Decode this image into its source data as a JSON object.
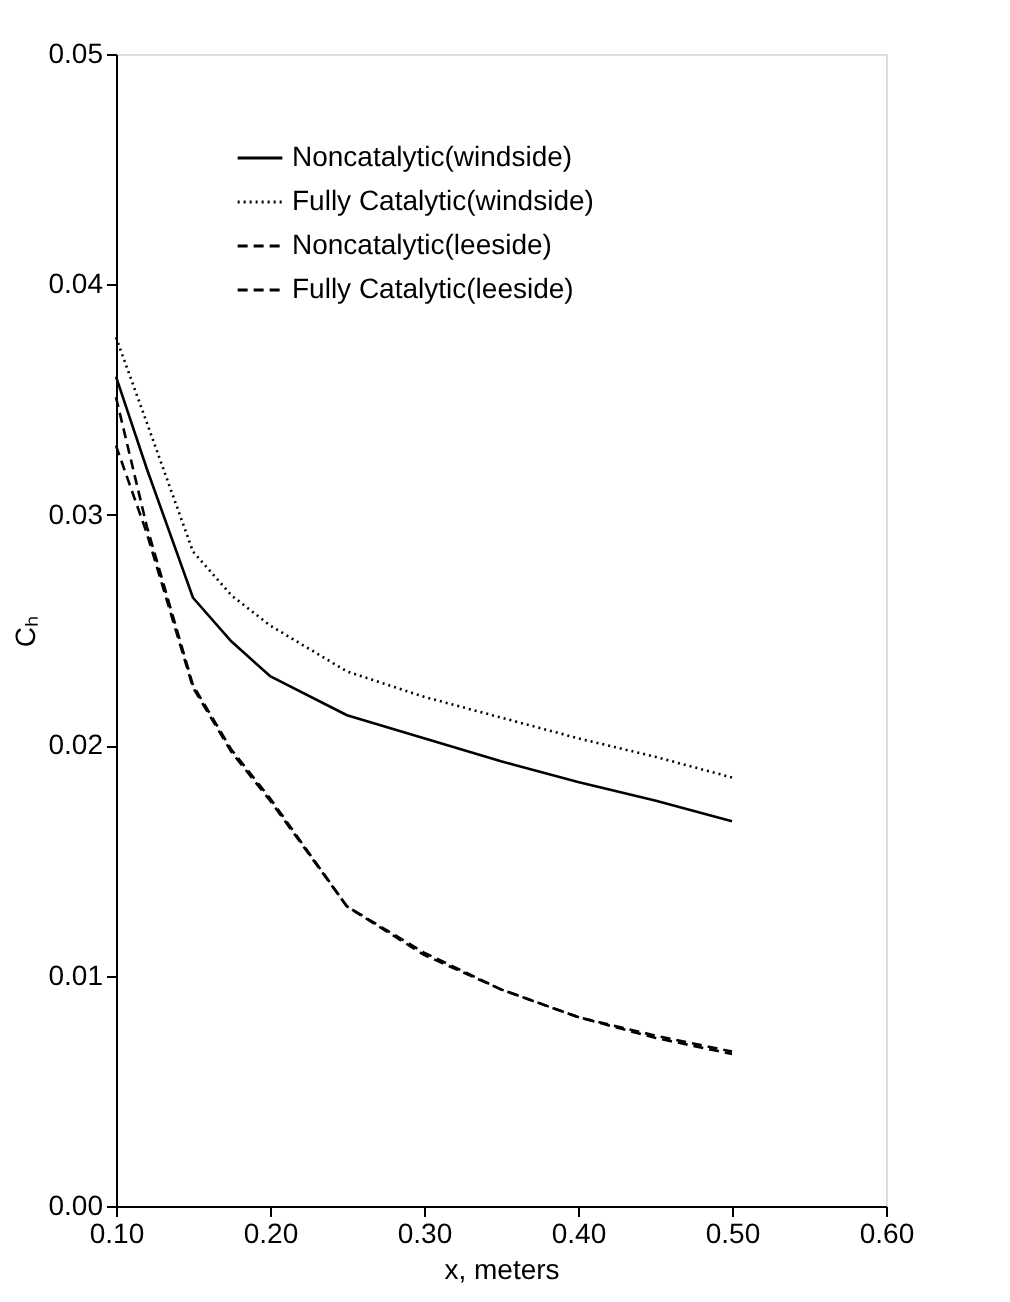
{
  "chart_data": {
    "type": "line",
    "xlabel": "x, meters",
    "ylabel": "Cₕ",
    "x": [
      0.1,
      0.12,
      0.15,
      0.175,
      0.2,
      0.25,
      0.3,
      0.35,
      0.4,
      0.45,
      0.5
    ],
    "series": [
      {
        "name": "Noncatalytic(windside)",
        "color": "#000000",
        "line_style": "solid",
        "values": [
          0.036,
          0.032,
          0.0264,
          0.0245,
          0.023,
          0.0213,
          0.0203,
          0.0193,
          0.0184,
          0.0176,
          0.0167
        ]
      },
      {
        "name": "Fully Catalytic(windside)",
        "color": "#000000",
        "line_style": "dotted",
        "values": [
          0.0377,
          0.034,
          0.0284,
          0.0265,
          0.0252,
          0.0232,
          0.0221,
          0.0212,
          0.0203,
          0.0195,
          0.0186
        ]
      },
      {
        "name": "Noncatalytic(leeside)",
        "color": "#000000",
        "line_style": "dashed",
        "values": [
          0.0351,
          0.0295,
          0.0226,
          0.0198,
          0.0177,
          0.013,
          0.011,
          0.0094,
          0.0082,
          0.0073,
          0.0066
        ]
      },
      {
        "name": "Fully Catalytic(leeside)",
        "color": "#000000",
        "line_style": "dashed",
        "values": [
          0.033,
          0.0292,
          0.0225,
          0.0197,
          0.0176,
          0.013,
          0.0109,
          0.0094,
          0.0082,
          0.0074,
          0.0067
        ]
      }
    ],
    "xlim": [
      0.1,
      0.6
    ],
    "ylim": [
      0.0,
      0.05
    ],
    "xticks": [
      {
        "value": 0.1,
        "label": "0.10"
      },
      {
        "value": 0.2,
        "label": "0.20"
      },
      {
        "value": 0.3,
        "label": "0.30"
      },
      {
        "value": 0.4,
        "label": "0.40"
      },
      {
        "value": 0.5,
        "label": "0.50"
      },
      {
        "value": 0.6,
        "label": "0.60"
      }
    ],
    "yticks": [
      {
        "value": 0,
        "label": "0.00"
      },
      {
        "value": 0.01,
        "label": "0.01"
      },
      {
        "value": 0.02,
        "label": "0.02"
      },
      {
        "value": 0.03,
        "label": "0.03"
      },
      {
        "value": 0.04,
        "label": "0.04"
      },
      {
        "value": 0.05,
        "label": "0.05"
      }
    ],
    "grid": false,
    "legend": "top",
    "marker": "none"
  }
}
